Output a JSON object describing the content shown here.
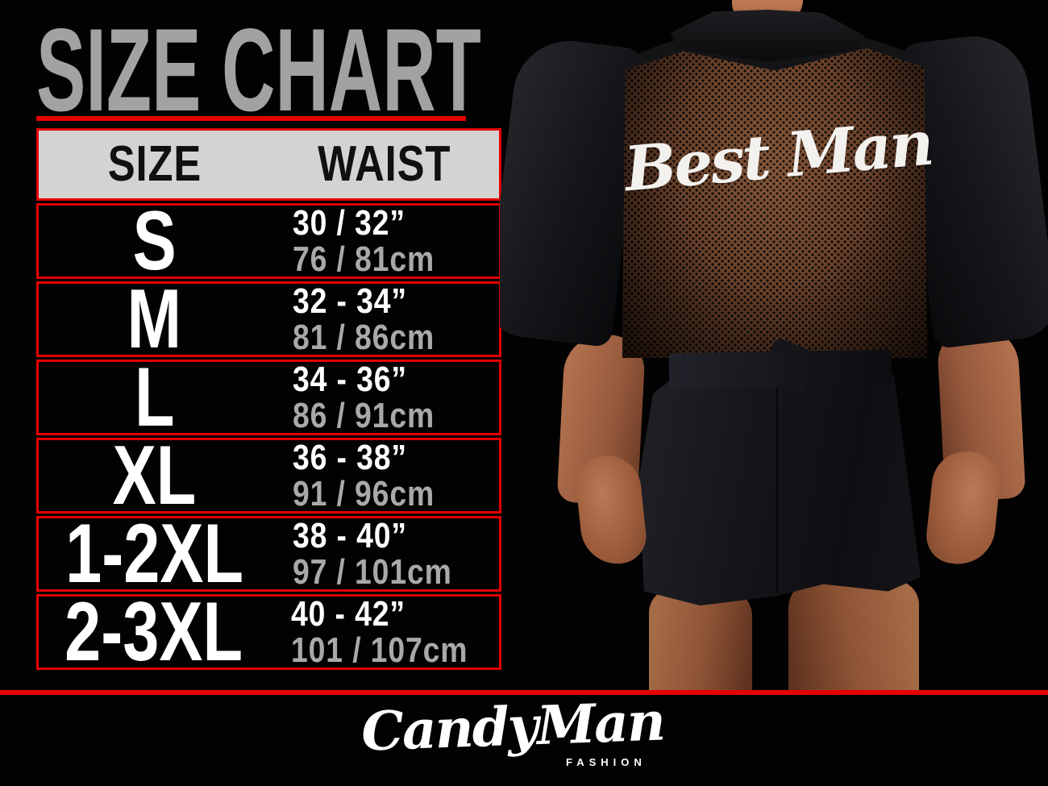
{
  "title": {
    "text": "SIZE CHART"
  },
  "table": {
    "headers": {
      "size": "SIZE",
      "waist": "WAIST"
    },
    "rows": [
      {
        "size": "S",
        "waist_inches": "30 / 32”",
        "waist_cm": "76 / 81cm"
      },
      {
        "size": "M",
        "waist_inches": "32 - 34”",
        "waist_cm": "81 / 86cm"
      },
      {
        "size": "L",
        "waist_inches": "34 - 36”",
        "waist_cm": "86 / 91cm"
      },
      {
        "size": "XL",
        "waist_inches": "36 - 38”",
        "waist_cm": "91 / 96cm"
      },
      {
        "size": "1-2XL",
        "waist_inches": "38 - 40”",
        "waist_cm": "97 / 101cm"
      },
      {
        "size": "2-3XL",
        "waist_inches": "40 - 42”",
        "waist_cm": "101 / 107cm"
      }
    ]
  },
  "photo": {
    "garment_text": "Best Man"
  },
  "footer": {
    "brand": "CandyMan",
    "brand_sub": "FASHION"
  },
  "colors": {
    "accent_red": "#e40000",
    "title_gray": "#a2a2a2",
    "header_bg": "#d5d2d2",
    "waist_inches_text": "#ffffff",
    "waist_cm_text": "#aaa8a8",
    "background": "#020202"
  },
  "chart_data": {
    "type": "table",
    "title": "SIZE CHART",
    "columns": [
      "SIZE",
      "WAIST (inches)",
      "WAIST (cm)"
    ],
    "rows": [
      [
        "S",
        "30 / 32”",
        "76 / 81cm"
      ],
      [
        "M",
        "32 - 34”",
        "81 / 86cm"
      ],
      [
        "L",
        "34 - 36”",
        "86 / 91cm"
      ],
      [
        "XL",
        "36 - 38”",
        "91 / 96cm"
      ],
      [
        "1-2XL",
        "38 - 40”",
        "97 / 101cm"
      ],
      [
        "2-3XL",
        "40 - 42”",
        "101 / 107cm"
      ]
    ]
  }
}
